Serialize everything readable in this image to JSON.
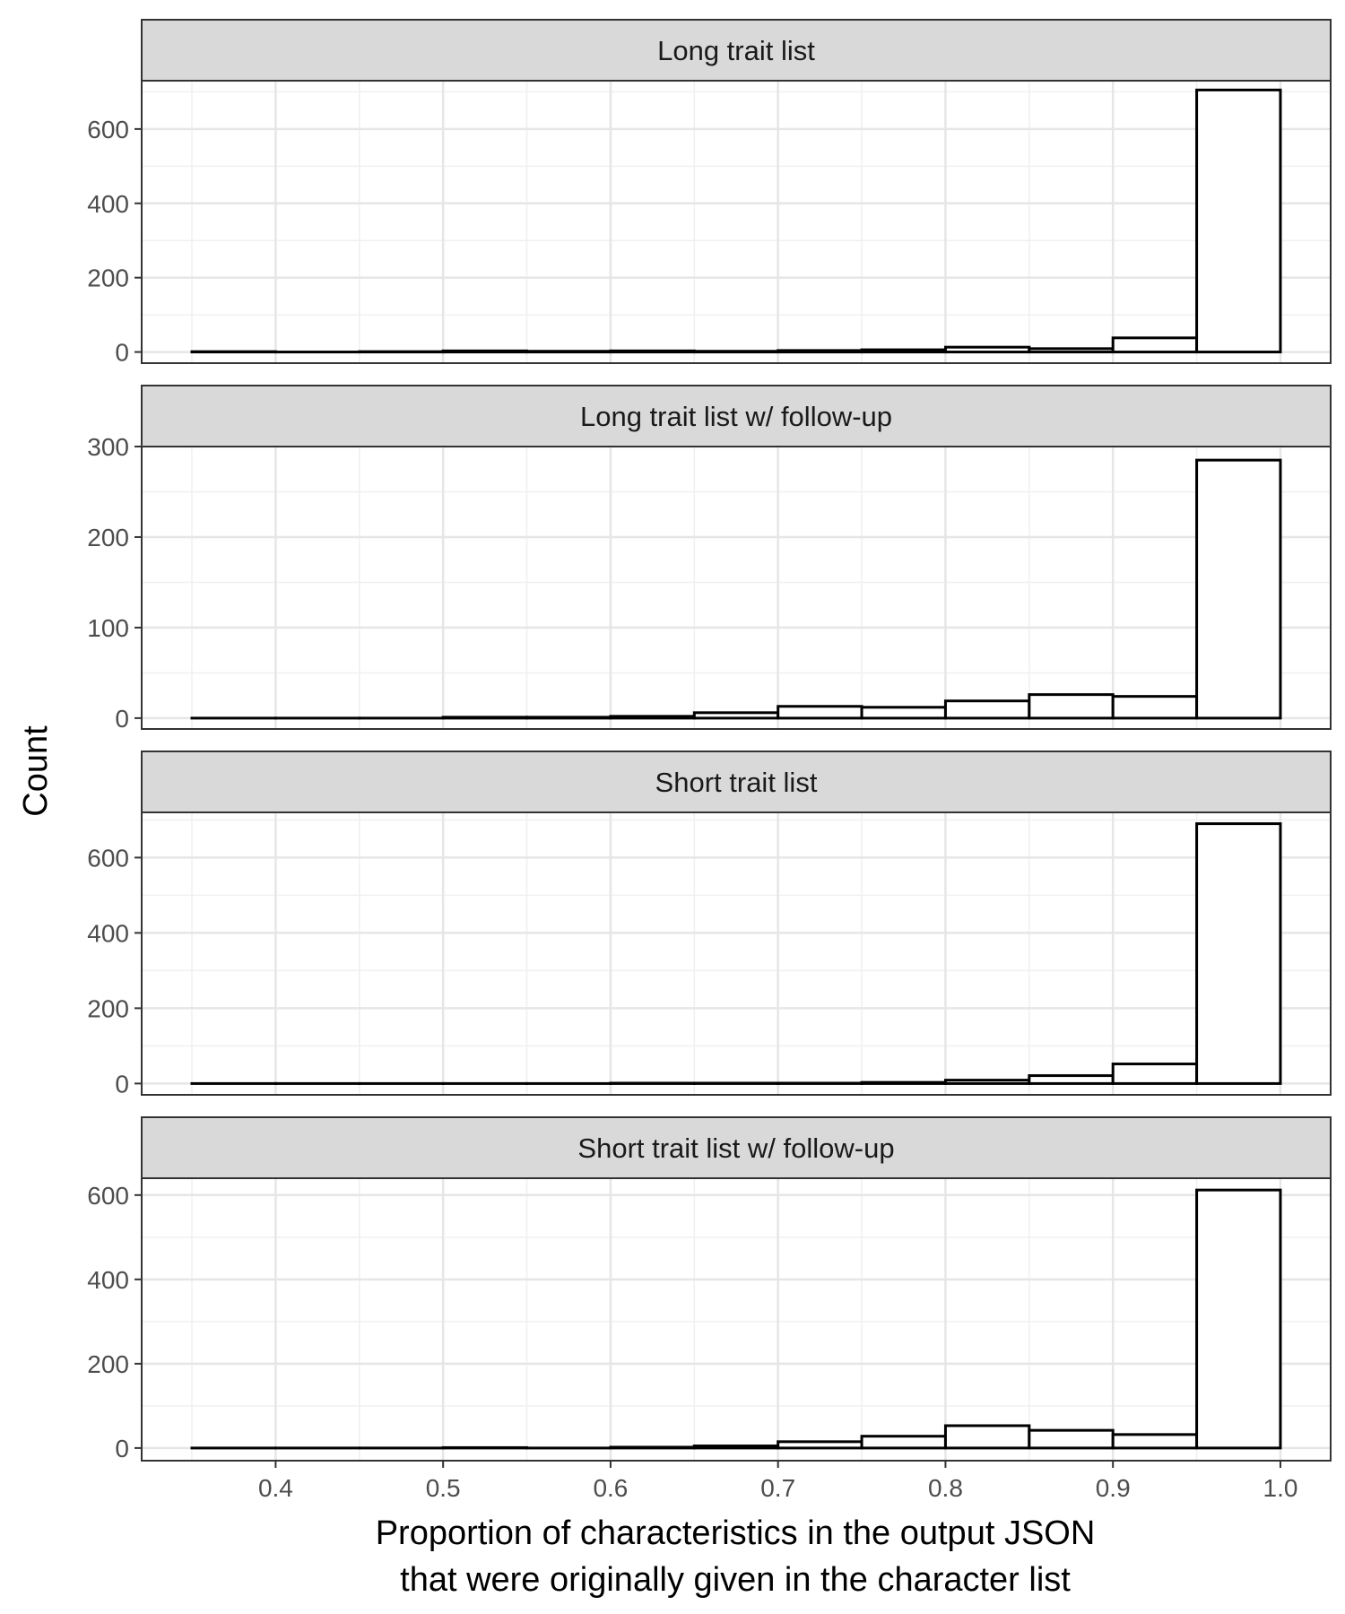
{
  "chart_data": {
    "type": "bar",
    "subtype": "faceted-histogram",
    "xlabel_lines": [
      "Proportion of characteristics in the output JSON",
      "that were originally given in the character list"
    ],
    "ylabel": "Count",
    "x_ticks": [
      "0.4",
      "0.5",
      "0.6",
      "0.7",
      "0.8",
      "0.9",
      "1.0"
    ],
    "xlim": [
      0.32,
      1.03
    ],
    "bin_width": 0.05,
    "bin_starts": [
      0.35,
      0.4,
      0.45,
      0.5,
      0.55,
      0.6,
      0.65,
      0.7,
      0.75,
      0.8,
      0.85,
      0.9,
      0.95
    ],
    "grid": true,
    "legend": "none",
    "bar_fill": "#ffffff",
    "bar_outline": "#000000",
    "strip_fill": "#d9d9d9",
    "panels": [
      {
        "title": "Long trait list",
        "ylim": [
          -30,
          730
        ],
        "y_ticks": [
          0,
          200,
          400,
          600
        ],
        "values": [
          1,
          0,
          1,
          3,
          2,
          3,
          2,
          4,
          6,
          13,
          9,
          38,
          705
        ]
      },
      {
        "title": "Long trait list w/ follow-up",
        "ylim": [
          -12,
          300
        ],
        "y_ticks": [
          0,
          100,
          200,
          300
        ],
        "values": [
          0,
          0,
          0,
          1,
          1,
          2,
          6,
          13,
          12,
          19,
          26,
          24,
          285
        ]
      },
      {
        "title": "Short trait list",
        "ylim": [
          -30,
          720
        ],
        "y_ticks": [
          0,
          200,
          400,
          600
        ],
        "values": [
          0,
          0,
          0,
          0,
          0,
          1,
          1,
          1,
          3,
          9,
          21,
          52,
          690
        ]
      },
      {
        "title": "Short trait list w/ follow-up",
        "ylim": [
          -30,
          640
        ],
        "y_ticks": [
          0,
          200,
          400,
          600
        ],
        "values": [
          0,
          0,
          0,
          1,
          0,
          2,
          5,
          15,
          28,
          53,
          42,
          32,
          612
        ]
      }
    ]
  }
}
